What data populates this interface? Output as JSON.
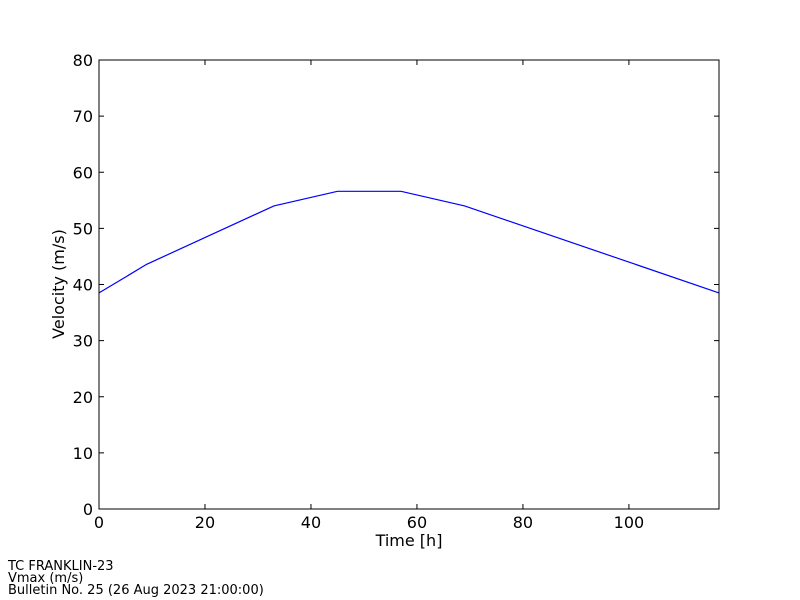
{
  "chart_data": {
    "type": "line",
    "xlabel": "Time [h]",
    "ylabel": "Velocity (m/s)",
    "x": [
      0,
      9,
      33,
      45,
      57,
      69,
      117
    ],
    "series": [
      {
        "color": "#0000ff",
        "values": [
          38.5,
          43.6,
          54,
          56.6,
          56.6,
          54,
          38.5
        ]
      }
    ],
    "xlim": [
      0,
      117
    ],
    "ylim": [
      0,
      80
    ],
    "xticks": [
      0,
      20,
      40,
      60,
      80,
      100
    ],
    "yticks": [
      0,
      10,
      20,
      30,
      40,
      50,
      60,
      70,
      80
    ]
  },
  "footer": [
    "TC FRANKLIN-23",
    "Vmax (m/s)",
    "Bulletin No. 25 (26 Aug 2023  21:00:00)"
  ]
}
